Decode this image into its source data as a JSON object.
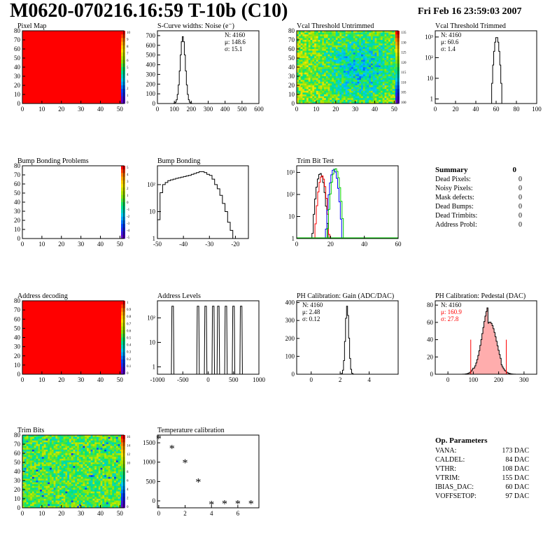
{
  "header": {
    "title": "M0620-070216.16:59 T-10b (C10)",
    "date": "Fri Feb 16 23:59:03 2007"
  },
  "colors": {
    "hist_red": "#ff0000",
    "axes": "#000000",
    "green": "#00cc00"
  },
  "panels": [
    {
      "id": "pixel-map",
      "title": "Pixel Map",
      "type": "heatmap",
      "xlim": [
        0,
        52
      ],
      "ylim": [
        0,
        80
      ],
      "xticks": [
        0,
        10,
        20,
        30,
        40,
        50
      ],
      "yticks": [
        0,
        10,
        20,
        30,
        40,
        50,
        60,
        70,
        80
      ],
      "z_range": [
        0,
        10
      ],
      "fill": "uniform-red",
      "palette_ticks": [
        "10",
        "9",
        "8",
        "7",
        "6",
        "5",
        "4",
        "3",
        "2",
        "1",
        "0"
      ]
    },
    {
      "id": "scurve-widths",
      "title": "S-Curve widths: Noise (e⁻)",
      "type": "histogram",
      "xlim": [
        0,
        600
      ],
      "ylim": [
        0,
        750
      ],
      "xticks": [
        0,
        100,
        200,
        300,
        400,
        500,
        600
      ],
      "yticks": [
        0,
        100,
        200,
        300,
        400,
        500,
        600,
        700
      ],
      "stats": [
        "N: 4160",
        "μ: 148.6",
        "σ: 15.1"
      ],
      "peak": 150,
      "sigma": 15,
      "height": 690
    },
    {
      "id": "vcal-untrimmed",
      "title": "Vcal Threshold Untrimmed",
      "type": "heatmap",
      "xlim": [
        0,
        52
      ],
      "ylim": [
        0,
        80
      ],
      "xticks": [
        0,
        10,
        20,
        30,
        40,
        50
      ],
      "yticks": [
        0,
        10,
        20,
        30,
        40,
        50,
        60,
        70,
        80
      ],
      "fill": "noisy-spectrum",
      "palette_ticks": [
        "135",
        "130",
        "125",
        "120",
        "115",
        "110",
        "105",
        "100"
      ]
    },
    {
      "id": "vcal-trimmed",
      "title": "Vcal Threshold Trimmed",
      "type": "histogram",
      "log": true,
      "xlim": [
        0,
        100
      ],
      "ylim": [
        0.6,
        2000
      ],
      "xticks": [
        0,
        20,
        40,
        60,
        80,
        100
      ],
      "ytick_labels": [
        "1",
        "10",
        "10²",
        "10³"
      ],
      "stats": [
        "N: 4160",
        "μ: 60.6",
        "σ: 1.4"
      ],
      "peak": 60.6,
      "sigma": 1.4,
      "height": 1000
    },
    {
      "id": "bump-problems",
      "title": "Bump Bonding Problems",
      "type": "heatmap",
      "xlim": [
        0,
        52
      ],
      "ylim": [
        0,
        80
      ],
      "xticks": [
        0,
        10,
        20,
        30,
        40,
        50
      ],
      "yticks": [
        0,
        10,
        20,
        30,
        40,
        50,
        60,
        70,
        80
      ],
      "fill": "empty",
      "palette_ticks": [
        "5",
        "4",
        "3",
        "2",
        "1",
        "0",
        "-1",
        "-2",
        "-3",
        "-4",
        "-5"
      ]
    },
    {
      "id": "bump-bonding",
      "title": "Bump Bonding",
      "type": "histogram",
      "log": true,
      "xlim": [
        -50,
        -15
      ],
      "ylim": [
        1,
        500
      ],
      "xticks": [
        -50,
        -40,
        -30,
        -20
      ],
      "ytick_labels": [
        "1",
        "10",
        "10²"
      ]
    },
    {
      "id": "trim-bit-test",
      "title": "Trim Bit Test",
      "type": "histogram",
      "log": true,
      "xlim": [
        0,
        60
      ],
      "ylim": [
        1,
        2000
      ],
      "xticks": [
        0,
        20,
        40,
        60
      ],
      "ytick_labels": [
        "1",
        "10",
        "10²",
        "10³"
      ]
    },
    {
      "id": "address-decoding",
      "title": "Address decoding",
      "type": "heatmap",
      "xlim": [
        0,
        52
      ],
      "ylim": [
        0,
        80
      ],
      "xticks": [
        0,
        10,
        20,
        30,
        40,
        50
      ],
      "yticks": [
        0,
        10,
        20,
        30,
        40,
        50,
        60,
        70,
        80
      ],
      "fill": "uniform-red",
      "palette_ticks": [
        "1",
        "0.9",
        "0.8",
        "0.7",
        "0.6",
        "0.5",
        "0.4",
        "0.3",
        "0.2",
        "0.1",
        "0"
      ]
    },
    {
      "id": "address-levels",
      "title": "Address Levels",
      "type": "histogram",
      "log": true,
      "xlim": [
        -1000,
        1000
      ],
      "ylim": [
        0.5,
        500
      ],
      "xticks": [
        -1000,
        -500,
        0,
        500,
        1000
      ],
      "ytick_labels": [
        "1",
        "10",
        "10²"
      ]
    },
    {
      "id": "ph-gain",
      "title": "PH Calibration: Gain (ADC/DAC)",
      "type": "histogram",
      "xlim": [
        -1,
        6
      ],
      "ylim": [
        0,
        410
      ],
      "xticks": [
        0,
        2,
        4
      ],
      "yticks": [
        0,
        100,
        200,
        300,
        400
      ],
      "stats": [
        "N: 4160",
        "μ: 2.48",
        "σ: 0.12"
      ],
      "peak": 2.48,
      "sigma": 0.12,
      "height": 380
    },
    {
      "id": "ph-pedestal",
      "title": "PH Calibration: Pedestal (DAC)",
      "type": "histogram",
      "xlim": [
        -50,
        350
      ],
      "ylim": [
        0,
        85
      ],
      "xticks": [
        0,
        100,
        200,
        300
      ],
      "yticks": [
        0,
        20,
        40,
        60,
        80
      ],
      "stats": [
        "N: 4160",
        "μ: 160.9",
        "σ: 27.8"
      ],
      "peak": 160.9,
      "sigma": 27.8,
      "height": 68,
      "cut_lines": [
        90,
        230
      ]
    },
    {
      "id": "trim-bits",
      "title": "Trim Bits",
      "type": "heatmap",
      "xlim": [
        0,
        52
      ],
      "ylim": [
        0,
        80
      ],
      "xticks": [
        0,
        10,
        20,
        30,
        40,
        50
      ],
      "yticks": [
        0,
        10,
        20,
        30,
        40,
        50,
        60,
        70,
        80
      ],
      "fill": "noisy-green",
      "palette_ticks": [
        "16",
        "14",
        "12",
        "10",
        "8",
        "6",
        "4",
        "2",
        "0"
      ]
    },
    {
      "id": "temp-calibration",
      "title": "Temperature calibration",
      "type": "scatter",
      "xlim": [
        -0.1,
        7.6
      ],
      "ylim": [
        -180,
        1700
      ],
      "xticks": [
        0,
        2,
        4,
        6
      ],
      "yticks": [
        0,
        500,
        1000,
        1500
      ],
      "points": [
        [
          0,
          1580
        ],
        [
          1,
          1330
        ],
        [
          2,
          960
        ],
        [
          3,
          460
        ],
        [
          4,
          -120
        ],
        [
          5,
          -100
        ],
        [
          6,
          -100
        ],
        [
          7,
          -100
        ]
      ]
    }
  ],
  "summary": {
    "title": "Summary",
    "total": "0",
    "rows": [
      {
        "label": "Dead Pixels:",
        "value": "0"
      },
      {
        "label": "Noisy Pixels:",
        "value": "0"
      },
      {
        "label": "Mask defects:",
        "value": "0"
      },
      {
        "label": "Dead Bumps:",
        "value": "0"
      },
      {
        "label": "Dead Trimbits:",
        "value": "0"
      },
      {
        "label": "Address Probl:",
        "value": "0"
      }
    ]
  },
  "op_parameters": {
    "title": "Op. Parameters",
    "rows": [
      {
        "label": "VANA:",
        "value": "173 DAC"
      },
      {
        "label": "CALDEL:",
        "value": "84 DAC"
      },
      {
        "label": "VTHR:",
        "value": "108 DAC"
      },
      {
        "label": "VTRIM:",
        "value": "155 DAC"
      },
      {
        "label": "IBIAS_DAC:",
        "value": "60 DAC"
      },
      {
        "label": "VOFFSETOP:",
        "value": "97 DAC"
      }
    ]
  },
  "chart_data": [
    {
      "type": "heatmap",
      "title": "Pixel Map",
      "xlim": [
        0,
        52
      ],
      "ylim": [
        0,
        80
      ],
      "note": "all pixels at maximum (red)"
    },
    {
      "type": "bar",
      "title": "S-Curve widths: Noise (e⁻)",
      "x": [
        100,
        125,
        140,
        150,
        160,
        175,
        200,
        225
      ],
      "values": [
        0,
        20,
        300,
        690,
        500,
        100,
        15,
        0
      ],
      "xlim": [
        0,
        600
      ],
      "ylim": [
        0,
        750
      ]
    },
    {
      "type": "heatmap",
      "title": "Vcal Threshold Untrimmed",
      "xlim": [
        0,
        52
      ],
      "ylim": [
        0,
        80
      ],
      "z_range": [
        100,
        135
      ]
    },
    {
      "type": "bar",
      "title": "Vcal Threshold Trimmed",
      "x": [
        56,
        58,
        60,
        62,
        64
      ],
      "values": [
        2,
        30,
        1000,
        40,
        2
      ],
      "xlim": [
        0,
        100
      ]
    },
    {
      "type": "heatmap",
      "title": "Bump Bonding Problems",
      "xlim": [
        0,
        52
      ],
      "ylim": [
        0,
        80
      ],
      "z_range": [
        -5,
        5
      ]
    },
    {
      "type": "bar",
      "title": "Bump Bonding",
      "x": [
        -50,
        -45,
        -40,
        -35,
        -30,
        -25,
        -20
      ],
      "values": [
        5,
        150,
        220,
        300,
        200,
        50,
        1
      ],
      "xlim": [
        -50,
        -15
      ]
    },
    {
      "type": "bar",
      "title": "Trim Bit Test",
      "x": [
        10,
        14,
        17,
        22,
        25
      ],
      "values": [
        5,
        1000,
        600,
        1500,
        10
      ],
      "xlim": [
        0,
        60
      ]
    },
    {
      "type": "heatmap",
      "title": "Address decoding",
      "xlim": [
        0,
        52
      ],
      "ylim": [
        0,
        80
      ],
      "z_range": [
        0,
        1
      ]
    },
    {
      "type": "bar",
      "title": "Address Levels",
      "x": [
        -700,
        -200,
        -50,
        100,
        200,
        350,
        500,
        650
      ],
      "values": [
        300,
        300,
        300,
        300,
        300,
        300,
        300,
        300
      ],
      "xlim": [
        -1000,
        1000
      ]
    },
    {
      "type": "bar",
      "title": "PH Calibration: Gain (ADC/DAC)",
      "x": [
        2.2,
        2.4,
        2.48,
        2.6,
        2.8
      ],
      "values": [
        5,
        150,
        380,
        120,
        5
      ],
      "xlim": [
        -1,
        6
      ]
    },
    {
      "type": "bar",
      "title": "PH Calibration: Pedestal (DAC)",
      "x": [
        80,
        120,
        160,
        200,
        240
      ],
      "values": [
        2,
        30,
        68,
        30,
        2
      ],
      "xlim": [
        -50,
        350
      ]
    },
    {
      "type": "heatmap",
      "title": "Trim Bits",
      "xlim": [
        0,
        52
      ],
      "ylim": [
        0,
        80
      ],
      "z_range": [
        0,
        16
      ]
    },
    {
      "type": "scatter",
      "title": "Temperature calibration",
      "x": [
        0,
        1,
        2,
        3,
        4,
        5,
        6,
        7
      ],
      "y": [
        1580,
        1330,
        960,
        460,
        -120,
        -100,
        -100,
        -100
      ],
      "xlim": [
        -0.1,
        7.6
      ],
      "ylim": [
        -180,
        1700
      ]
    }
  ]
}
